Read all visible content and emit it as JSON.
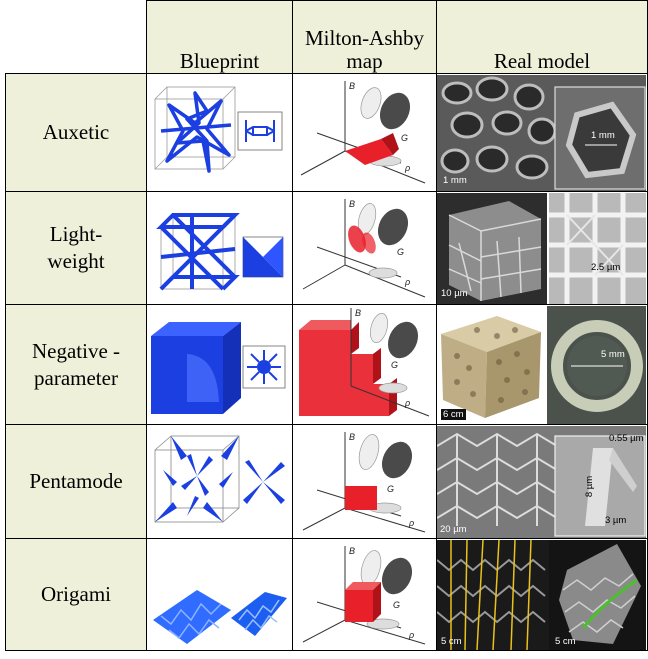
{
  "header": {
    "blueprint": "Blueprint",
    "milton_ashby": "Milton-Ashby map",
    "real_model": "Real model"
  },
  "axes": {
    "b": "B",
    "g": "G",
    "rho": "ρ"
  },
  "rows": [
    {
      "label": "Auxetic",
      "scale_bars": [
        "1 mm",
        "1 mm"
      ]
    },
    {
      "label": "Light-weight",
      "scale_bars": [
        "10 µm",
        "2.5 µm"
      ]
    },
    {
      "label": "Negative - parameter",
      "scale_bars": [
        "6 cm",
        "5 mm"
      ]
    },
    {
      "label": "Pentamode",
      "scale_bars": [
        "20 µm",
        "0.55 µm",
        "8 µm",
        "3 µm"
      ]
    },
    {
      "label": "Origami",
      "scale_bars": [
        "5 cm",
        "5 cm"
      ]
    }
  ],
  "colors": {
    "header_bg": "#eef0d9",
    "blueprint_blue": "#1b3fe0",
    "map_red": "#e8202a"
  }
}
